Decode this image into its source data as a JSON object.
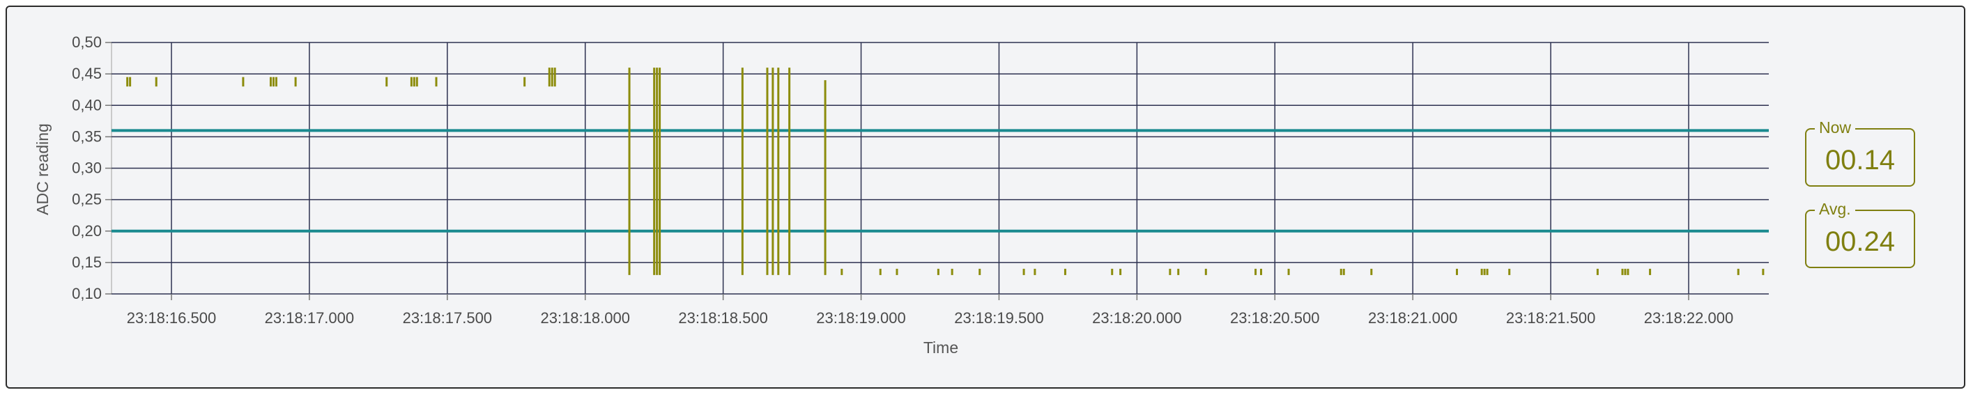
{
  "chart_data": {
    "type": "scatter",
    "ylabel": "ADC reading",
    "xlabel": "Time",
    "ylim": [
      0.1,
      0.5
    ],
    "y_ticks": [
      "0,10",
      "0,15",
      "0,20",
      "0,25",
      "0,30",
      "0,35",
      "0,40",
      "0,45",
      "0,50"
    ],
    "x_start_label": "23:18:16.282",
    "x_ticks": [
      "23:18:16.500",
      "23:18:17.000",
      "23:18:17.500",
      "23:18:18.000",
      "23:18:18.500",
      "23:18:19.000",
      "23:18:19.500",
      "23:18:20.000",
      "23:18:20.500",
      "23:18:21.000",
      "23:18:21.500",
      "23:18:22.000"
    ],
    "thresholds": [
      0.2,
      0.36
    ],
    "threshold_color": "#1a8a8f",
    "series_color": "#8c8c0c",
    "grid": true,
    "bars": [
      {
        "t": "23:18:16.340",
        "lo": 0.43,
        "hi": 0.445
      },
      {
        "t": "23:18:16.350",
        "lo": 0.43,
        "hi": 0.445
      },
      {
        "t": "23:18:16.445",
        "lo": 0.43,
        "hi": 0.445
      },
      {
        "t": "23:18:16.760",
        "lo": 0.43,
        "hi": 0.445
      },
      {
        "t": "23:18:16.860",
        "lo": 0.43,
        "hi": 0.445
      },
      {
        "t": "23:18:16.870",
        "lo": 0.43,
        "hi": 0.445
      },
      {
        "t": "23:18:16.880",
        "lo": 0.43,
        "hi": 0.445
      },
      {
        "t": "23:18:16.950",
        "lo": 0.43,
        "hi": 0.445
      },
      {
        "t": "23:18:17.280",
        "lo": 0.43,
        "hi": 0.445
      },
      {
        "t": "23:18:17.370",
        "lo": 0.43,
        "hi": 0.445
      },
      {
        "t": "23:18:17.380",
        "lo": 0.43,
        "hi": 0.445
      },
      {
        "t": "23:18:17.390",
        "lo": 0.43,
        "hi": 0.445
      },
      {
        "t": "23:18:17.460",
        "lo": 0.43,
        "hi": 0.445
      },
      {
        "t": "23:18:17.780",
        "lo": 0.43,
        "hi": 0.445
      },
      {
        "t": "23:18:17.870",
        "lo": 0.43,
        "hi": 0.46
      },
      {
        "t": "23:18:17.880",
        "lo": 0.43,
        "hi": 0.46
      },
      {
        "t": "23:18:17.890",
        "lo": 0.43,
        "hi": 0.46
      },
      {
        "t": "23:18:18.160",
        "lo": 0.13,
        "hi": 0.46
      },
      {
        "t": "23:18:18.250",
        "lo": 0.13,
        "hi": 0.46
      },
      {
        "t": "23:18:18.260",
        "lo": 0.13,
        "hi": 0.46
      },
      {
        "t": "23:18:18.270",
        "lo": 0.13,
        "hi": 0.46
      },
      {
        "t": "23:18:18.570",
        "lo": 0.13,
        "hi": 0.46
      },
      {
        "t": "23:18:18.660",
        "lo": 0.13,
        "hi": 0.46
      },
      {
        "t": "23:18:18.680",
        "lo": 0.13,
        "hi": 0.46
      },
      {
        "t": "23:18:18.700",
        "lo": 0.13,
        "hi": 0.46
      },
      {
        "t": "23:18:18.740",
        "lo": 0.13,
        "hi": 0.46
      },
      {
        "t": "23:18:18.870",
        "lo": 0.13,
        "hi": 0.44
      },
      {
        "t": "23:18:18.930",
        "lo": 0.13,
        "hi": 0.14
      },
      {
        "t": "23:18:19.070",
        "lo": 0.13,
        "hi": 0.14
      },
      {
        "t": "23:18:19.130",
        "lo": 0.13,
        "hi": 0.14
      },
      {
        "t": "23:18:19.280",
        "lo": 0.13,
        "hi": 0.14
      },
      {
        "t": "23:18:19.330",
        "lo": 0.13,
        "hi": 0.14
      },
      {
        "t": "23:18:19.430",
        "lo": 0.13,
        "hi": 0.14
      },
      {
        "t": "23:18:19.590",
        "lo": 0.13,
        "hi": 0.14
      },
      {
        "t": "23:18:19.630",
        "lo": 0.13,
        "hi": 0.14
      },
      {
        "t": "23:18:19.740",
        "lo": 0.13,
        "hi": 0.14
      },
      {
        "t": "23:18:19.910",
        "lo": 0.13,
        "hi": 0.14
      },
      {
        "t": "23:18:19.940",
        "lo": 0.13,
        "hi": 0.14
      },
      {
        "t": "23:18:20.120",
        "lo": 0.13,
        "hi": 0.14
      },
      {
        "t": "23:18:20.150",
        "lo": 0.13,
        "hi": 0.14
      },
      {
        "t": "23:18:20.250",
        "lo": 0.13,
        "hi": 0.14
      },
      {
        "t": "23:18:20.430",
        "lo": 0.13,
        "hi": 0.14
      },
      {
        "t": "23:18:20.450",
        "lo": 0.13,
        "hi": 0.14
      },
      {
        "t": "23:18:20.550",
        "lo": 0.13,
        "hi": 0.14
      },
      {
        "t": "23:18:20.740",
        "lo": 0.13,
        "hi": 0.14
      },
      {
        "t": "23:18:20.750",
        "lo": 0.13,
        "hi": 0.14
      },
      {
        "t": "23:18:20.850",
        "lo": 0.13,
        "hi": 0.14
      },
      {
        "t": "23:18:21.160",
        "lo": 0.13,
        "hi": 0.14
      },
      {
        "t": "23:18:21.250",
        "lo": 0.13,
        "hi": 0.14
      },
      {
        "t": "23:18:21.260",
        "lo": 0.13,
        "hi": 0.14
      },
      {
        "t": "23:18:21.270",
        "lo": 0.13,
        "hi": 0.14
      },
      {
        "t": "23:18:21.350",
        "lo": 0.13,
        "hi": 0.14
      },
      {
        "t": "23:18:21.670",
        "lo": 0.13,
        "hi": 0.14
      },
      {
        "t": "23:18:21.760",
        "lo": 0.13,
        "hi": 0.14
      },
      {
        "t": "23:18:21.770",
        "lo": 0.13,
        "hi": 0.14
      },
      {
        "t": "23:18:21.780",
        "lo": 0.13,
        "hi": 0.14
      },
      {
        "t": "23:18:21.860",
        "lo": 0.13,
        "hi": 0.14
      },
      {
        "t": "23:18:22.180",
        "lo": 0.13,
        "hi": 0.14
      },
      {
        "t": "23:18:22.270",
        "lo": 0.13,
        "hi": 0.14
      }
    ]
  },
  "stats": {
    "now": {
      "label": "Now",
      "value": "00.14"
    },
    "avg": {
      "label": "Avg.",
      "value": "00.24"
    }
  }
}
